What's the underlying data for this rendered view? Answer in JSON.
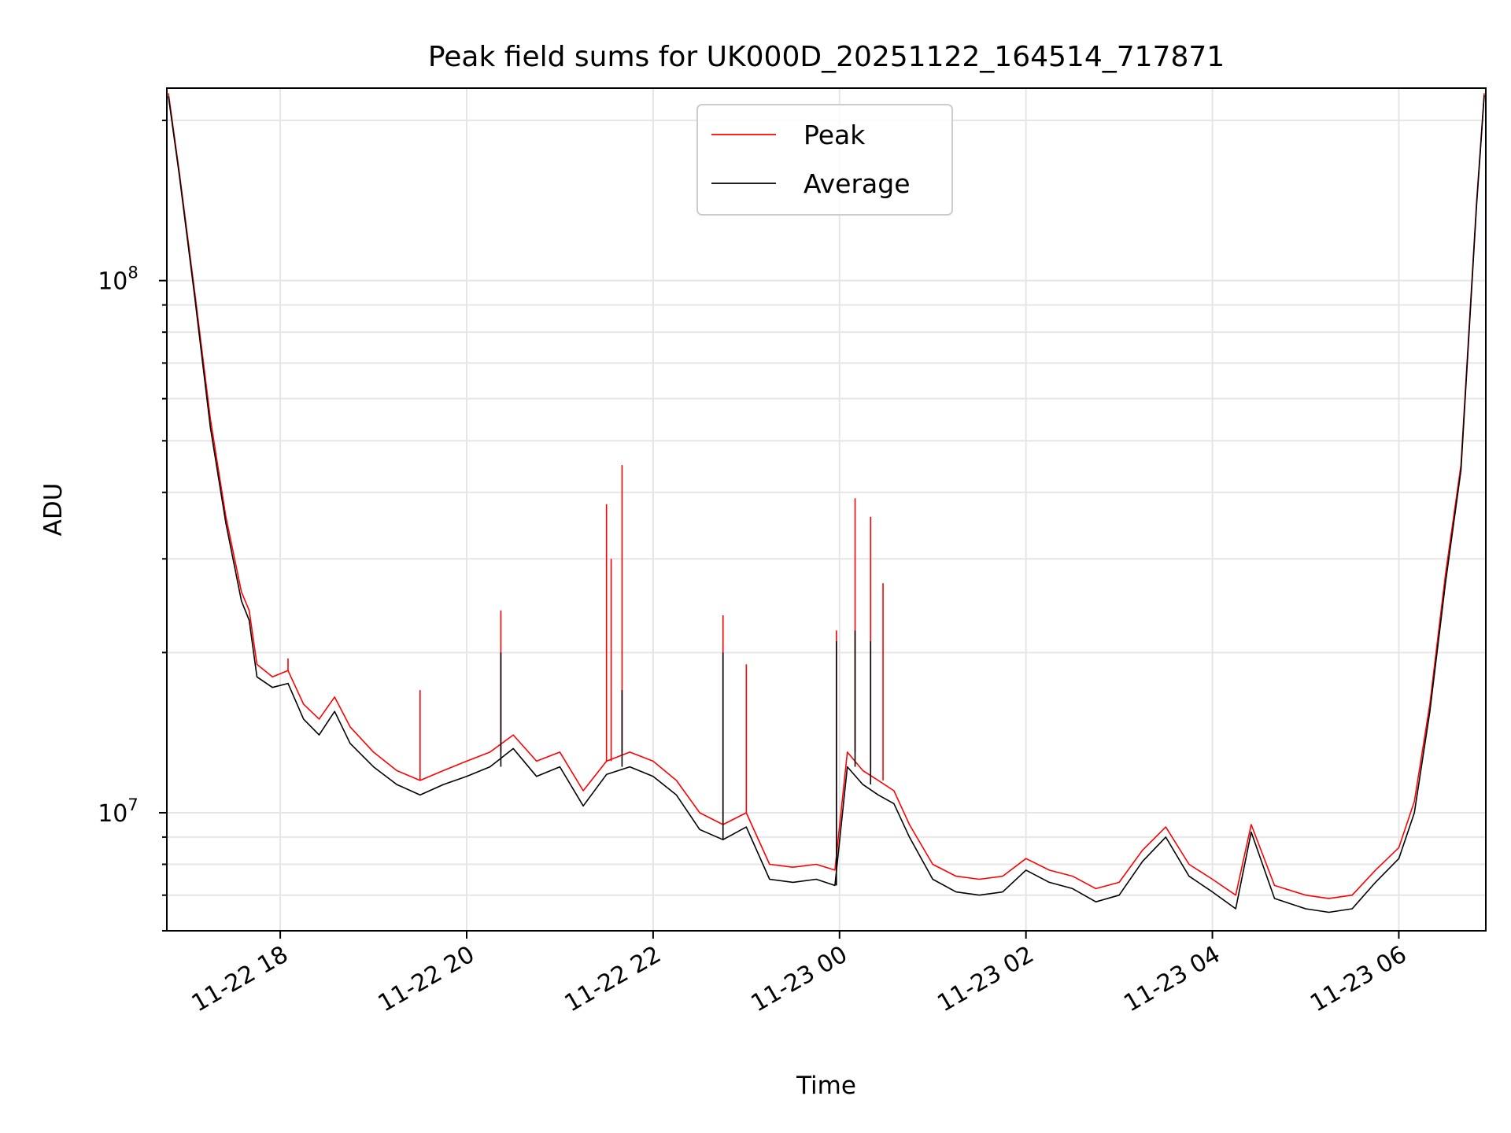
{
  "chart_data": {
    "type": "line",
    "title": "Peak field sums for UK000D_20251122_164514_717871",
    "xlabel": "Time",
    "ylabel": "ADU",
    "yscale": "log",
    "ylim": [
      6000000,
      230000000
    ],
    "xlim": [
      "2025-11-22 16:47",
      "2025-11-23 06:56"
    ],
    "x_ticks": [
      {
        "time": "2025-11-22 18:00",
        "label": "11-22 18"
      },
      {
        "time": "2025-11-22 20:00",
        "label": "11-22 20"
      },
      {
        "time": "2025-11-22 22:00",
        "label": "11-22 22"
      },
      {
        "time": "2025-11-23 00:00",
        "label": "11-23 00"
      },
      {
        "time": "2025-11-23 02:00",
        "label": "11-23 02"
      },
      {
        "time": "2025-11-23 04:00",
        "label": "11-23 04"
      },
      {
        "time": "2025-11-23 06:00",
        "label": "11-23 06"
      }
    ],
    "y_ticks": [
      {
        "value": 10000000,
        "base": "10",
        "exp": "7"
      },
      {
        "value": 100000000,
        "base": "10",
        "exp": "8"
      }
    ],
    "grid": true,
    "legend_position": "upper-center",
    "series": [
      {
        "name": "Peak",
        "color": "#ff0000",
        "points": [
          [
            "2025-11-22 16:48",
            225000000
          ],
          [
            "2025-11-22 16:55",
            160000000
          ],
          [
            "2025-11-22 17:05",
            95000000
          ],
          [
            "2025-11-22 17:15",
            55000000
          ],
          [
            "2025-11-22 17:25",
            36000000
          ],
          [
            "2025-11-22 17:35",
            26000000
          ],
          [
            "2025-11-22 17:40",
            24000000
          ],
          [
            "2025-11-22 17:45",
            19000000
          ],
          [
            "2025-11-22 17:55",
            18000000
          ],
          [
            "2025-11-22 18:05",
            18500000
          ],
          [
            "2025-11-22 18:15",
            16000000
          ],
          [
            "2025-11-22 18:25",
            15000000
          ],
          [
            "2025-11-22 18:35",
            16500000
          ],
          [
            "2025-11-22 18:45",
            14500000
          ],
          [
            "2025-11-22 19:00",
            13000000
          ],
          [
            "2025-11-22 19:15",
            12000000
          ],
          [
            "2025-11-22 19:30",
            11500000
          ],
          [
            "2025-11-22 19:45",
            12000000
          ],
          [
            "2025-11-22 20:00",
            12500000
          ],
          [
            "2025-11-22 20:15",
            13000000
          ],
          [
            "2025-11-22 20:30",
            14000000
          ],
          [
            "2025-11-22 20:45",
            12500000
          ],
          [
            "2025-11-22 21:00",
            13000000
          ],
          [
            "2025-11-22 21:15",
            11000000
          ],
          [
            "2025-11-22 21:30",
            12500000
          ],
          [
            "2025-11-22 21:45",
            13000000
          ],
          [
            "2025-11-22 22:00",
            12500000
          ],
          [
            "2025-11-22 22:15",
            11500000
          ],
          [
            "2025-11-22 22:30",
            10000000
          ],
          [
            "2025-11-22 22:45",
            9500000
          ],
          [
            "2025-11-22 23:00",
            10000000
          ],
          [
            "2025-11-22 23:15",
            8000000
          ],
          [
            "2025-11-22 23:30",
            7900000
          ],
          [
            "2025-11-22 23:45",
            8000000
          ],
          [
            "2025-11-22 23:57",
            7800000
          ],
          [
            "2025-11-23 00:05",
            13000000
          ],
          [
            "2025-11-23 00:15",
            12000000
          ],
          [
            "2025-11-23 00:25",
            11500000
          ],
          [
            "2025-11-23 00:35",
            11000000
          ],
          [
            "2025-11-23 00:45",
            9500000
          ],
          [
            "2025-11-23 01:00",
            8000000
          ],
          [
            "2025-11-23 01:15",
            7600000
          ],
          [
            "2025-11-23 01:30",
            7500000
          ],
          [
            "2025-11-23 01:45",
            7600000
          ],
          [
            "2025-11-23 02:00",
            8200000
          ],
          [
            "2025-11-23 02:15",
            7800000
          ],
          [
            "2025-11-23 02:30",
            7600000
          ],
          [
            "2025-11-23 02:45",
            7200000
          ],
          [
            "2025-11-23 03:00",
            7400000
          ],
          [
            "2025-11-23 03:15",
            8500000
          ],
          [
            "2025-11-23 03:30",
            9400000
          ],
          [
            "2025-11-23 03:45",
            8000000
          ],
          [
            "2025-11-23 04:00",
            7500000
          ],
          [
            "2025-11-23 04:15",
            7000000
          ],
          [
            "2025-11-23 04:25",
            9500000
          ],
          [
            "2025-11-23 04:40",
            7300000
          ],
          [
            "2025-11-23 05:00",
            7000000
          ],
          [
            "2025-11-23 05:15",
            6900000
          ],
          [
            "2025-11-23 05:30",
            7000000
          ],
          [
            "2025-11-23 05:45",
            7800000
          ],
          [
            "2025-11-23 06:00",
            8600000
          ],
          [
            "2025-11-23 06:10",
            10500000
          ],
          [
            "2025-11-23 06:20",
            16000000
          ],
          [
            "2025-11-23 06:30",
            28000000
          ],
          [
            "2025-11-23 06:40",
            45000000
          ],
          [
            "2025-11-23 06:50",
            140000000
          ],
          [
            "2025-11-23 06:55",
            225000000
          ]
        ],
        "spikes": [
          [
            "2025-11-22 20:22",
            24000000
          ],
          [
            "2025-11-22 21:30",
            38000000
          ],
          [
            "2025-11-22 21:33",
            30000000
          ],
          [
            "2025-11-22 21:40",
            45000000
          ],
          [
            "2025-11-22 22:45",
            23500000
          ],
          [
            "2025-11-22 23:00",
            19000000
          ],
          [
            "2025-11-22 23:58",
            22000000
          ],
          [
            "2025-11-23 00:10",
            39000000
          ],
          [
            "2025-11-23 00:20",
            36000000
          ],
          [
            "2025-11-23 00:28",
            27000000
          ],
          [
            "2025-11-22 19:30",
            17000000
          ],
          [
            "2025-11-22 18:05",
            19500000
          ]
        ]
      },
      {
        "name": "Average",
        "color": "#000000",
        "points": [
          [
            "2025-11-22 16:48",
            222000000
          ],
          [
            "2025-11-22 16:55",
            158000000
          ],
          [
            "2025-11-22 17:05",
            93000000
          ],
          [
            "2025-11-22 17:15",
            53000000
          ],
          [
            "2025-11-22 17:25",
            35000000
          ],
          [
            "2025-11-22 17:35",
            25000000
          ],
          [
            "2025-11-22 17:40",
            23000000
          ],
          [
            "2025-11-22 17:45",
            18000000
          ],
          [
            "2025-11-22 17:55",
            17200000
          ],
          [
            "2025-11-22 18:05",
            17500000
          ],
          [
            "2025-11-22 18:15",
            15000000
          ],
          [
            "2025-11-22 18:25",
            14000000
          ],
          [
            "2025-11-22 18:35",
            15500000
          ],
          [
            "2025-11-22 18:45",
            13500000
          ],
          [
            "2025-11-22 19:00",
            12200000
          ],
          [
            "2025-11-22 19:15",
            11300000
          ],
          [
            "2025-11-22 19:30",
            10800000
          ],
          [
            "2025-11-22 19:45",
            11300000
          ],
          [
            "2025-11-22 20:00",
            11700000
          ],
          [
            "2025-11-22 20:15",
            12200000
          ],
          [
            "2025-11-22 20:30",
            13200000
          ],
          [
            "2025-11-22 20:45",
            11700000
          ],
          [
            "2025-11-22 21:00",
            12200000
          ],
          [
            "2025-11-22 21:15",
            10300000
          ],
          [
            "2025-11-22 21:30",
            11800000
          ],
          [
            "2025-11-22 21:45",
            12200000
          ],
          [
            "2025-11-22 22:00",
            11700000
          ],
          [
            "2025-11-22 22:15",
            10800000
          ],
          [
            "2025-11-22 22:30",
            9300000
          ],
          [
            "2025-11-22 22:45",
            8900000
          ],
          [
            "2025-11-22 23:00",
            9400000
          ],
          [
            "2025-11-22 23:15",
            7500000
          ],
          [
            "2025-11-22 23:30",
            7400000
          ],
          [
            "2025-11-22 23:45",
            7500000
          ],
          [
            "2025-11-22 23:57",
            7300000
          ],
          [
            "2025-11-23 00:05",
            12200000
          ],
          [
            "2025-11-23 00:15",
            11300000
          ],
          [
            "2025-11-23 00:25",
            10800000
          ],
          [
            "2025-11-23 00:35",
            10400000
          ],
          [
            "2025-11-23 00:45",
            9000000
          ],
          [
            "2025-11-23 01:00",
            7500000
          ],
          [
            "2025-11-23 01:15",
            7100000
          ],
          [
            "2025-11-23 01:30",
            7000000
          ],
          [
            "2025-11-23 01:45",
            7100000
          ],
          [
            "2025-11-23 02:00",
            7800000
          ],
          [
            "2025-11-23 02:15",
            7400000
          ],
          [
            "2025-11-23 02:30",
            7200000
          ],
          [
            "2025-11-23 02:45",
            6800000
          ],
          [
            "2025-11-23 03:00",
            7000000
          ],
          [
            "2025-11-23 03:15",
            8100000
          ],
          [
            "2025-11-23 03:30",
            9000000
          ],
          [
            "2025-11-23 03:45",
            7600000
          ],
          [
            "2025-11-23 04:00",
            7100000
          ],
          [
            "2025-11-23 04:15",
            6600000
          ],
          [
            "2025-11-23 04:25",
            9200000
          ],
          [
            "2025-11-23 04:40",
            6900000
          ],
          [
            "2025-11-23 05:00",
            6600000
          ],
          [
            "2025-11-23 05:15",
            6500000
          ],
          [
            "2025-11-23 05:30",
            6600000
          ],
          [
            "2025-11-23 05:45",
            7400000
          ],
          [
            "2025-11-23 06:00",
            8200000
          ],
          [
            "2025-11-23 06:10",
            10000000
          ],
          [
            "2025-11-23 06:20",
            15500000
          ],
          [
            "2025-11-23 06:30",
            27000000
          ],
          [
            "2025-11-23 06:40",
            44000000
          ],
          [
            "2025-11-23 06:50",
            138000000
          ],
          [
            "2025-11-23 06:55",
            223000000
          ]
        ],
        "spikes": [
          [
            "2025-11-22 20:22",
            20000000
          ],
          [
            "2025-11-22 21:40",
            17000000
          ],
          [
            "2025-11-22 22:45",
            20000000
          ],
          [
            "2025-11-22 23:58",
            21000000
          ],
          [
            "2025-11-23 00:10",
            22000000
          ],
          [
            "2025-11-23 00:20",
            21000000
          ]
        ]
      }
    ]
  }
}
